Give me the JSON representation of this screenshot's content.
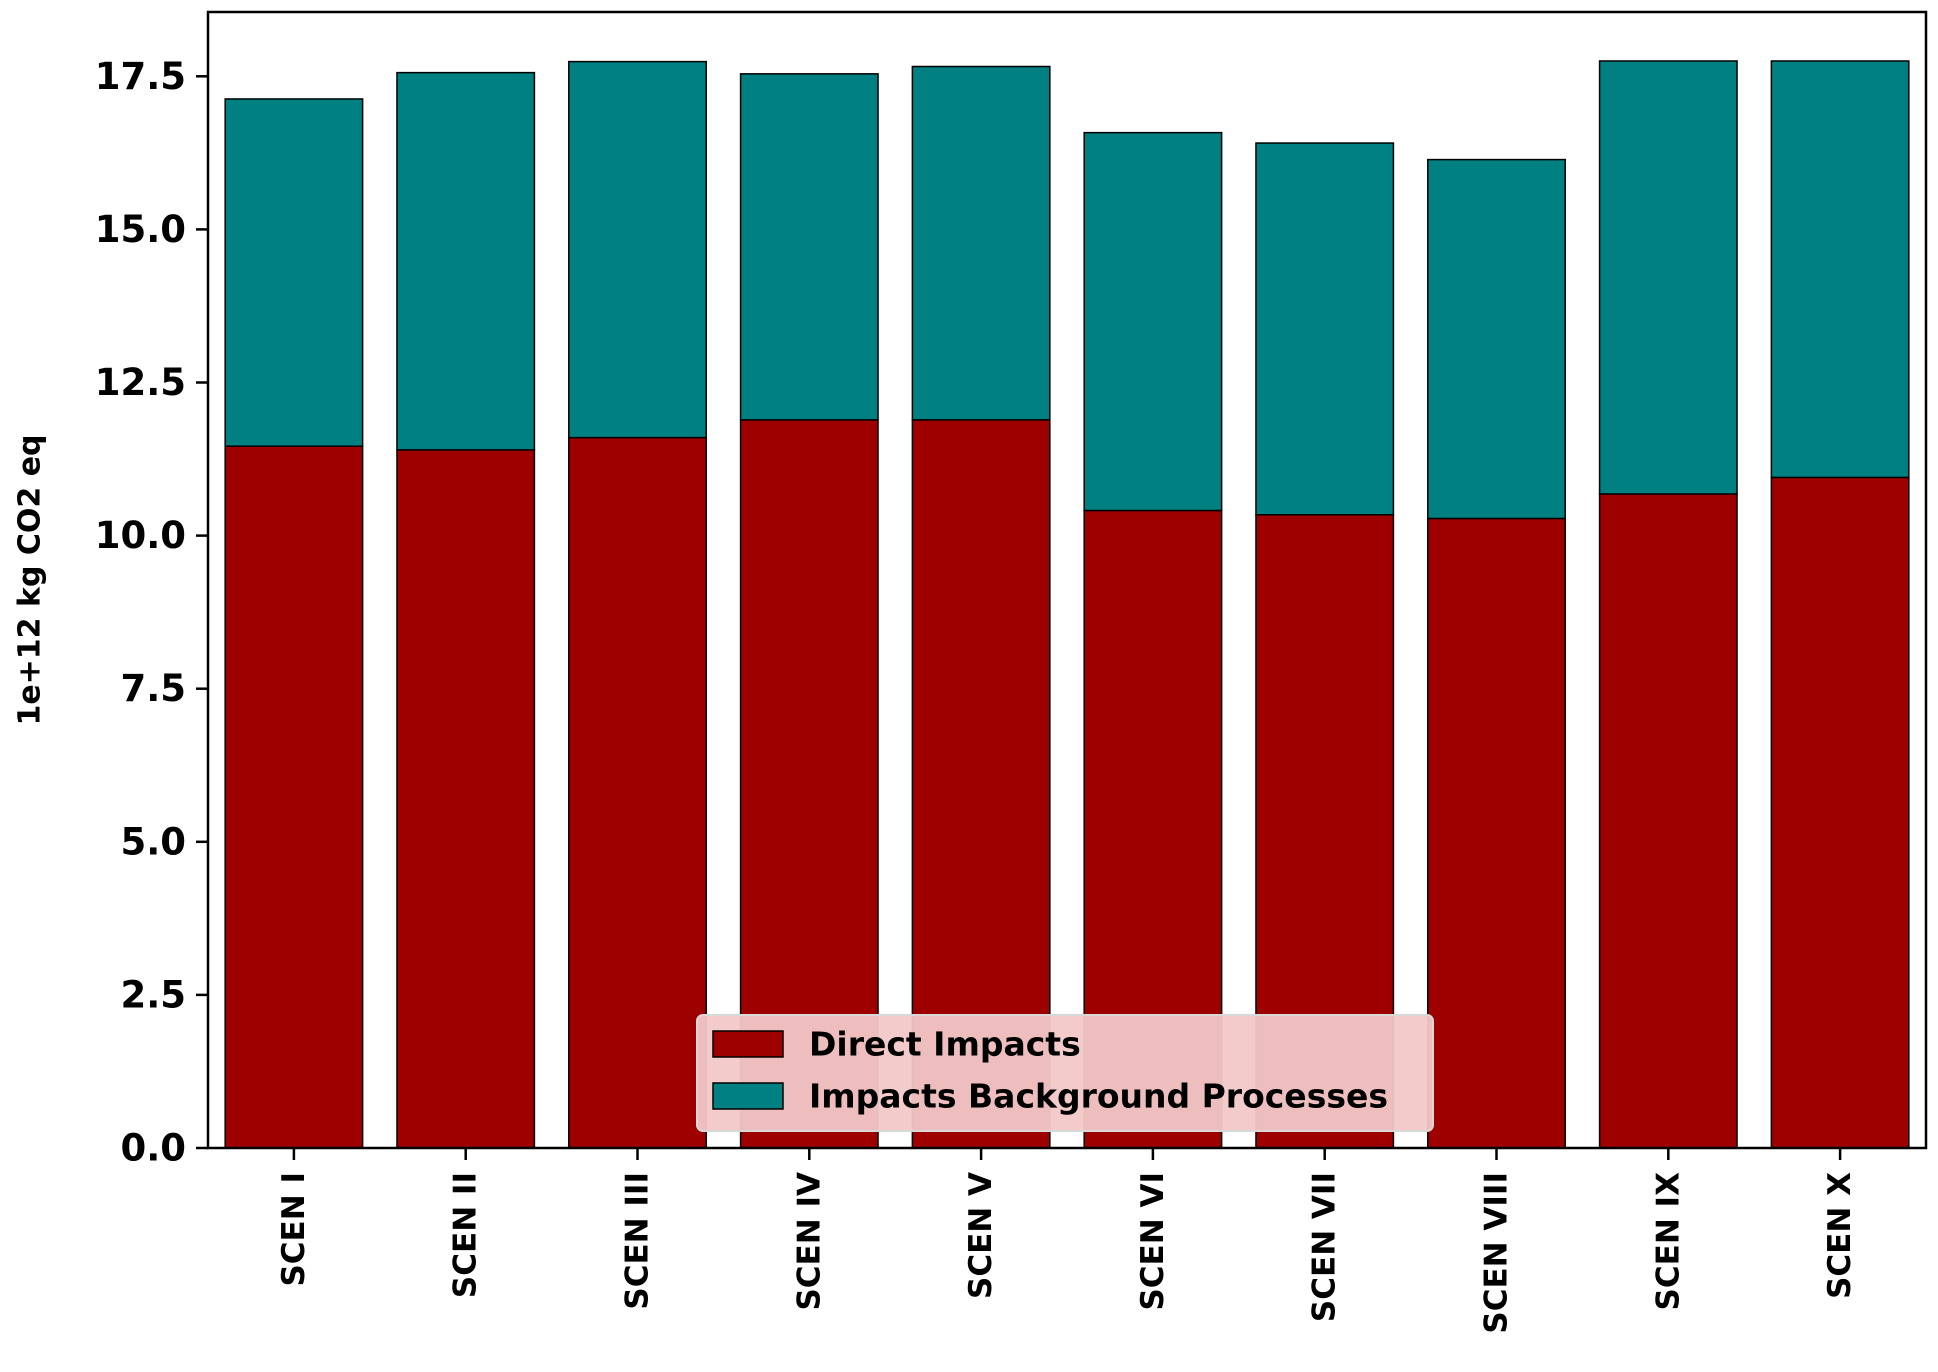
{
  "chart_data": {
    "type": "bar",
    "stacked": true,
    "title": "",
    "xlabel": "",
    "ylabel": "1e+12 kg CO2 eq",
    "ylim": [
      0,
      18.55
    ],
    "yticks": [
      "0.0",
      "2.5",
      "5.0",
      "7.5",
      "10.0",
      "12.5",
      "15.0",
      "17.5"
    ],
    "ytick_values": [
      0,
      2.5,
      5,
      7.5,
      10,
      12.5,
      15,
      17.5
    ],
    "categories": [
      "SCEN I",
      "SCEN II",
      "SCEN III",
      "SCEN IV",
      "SCEN V",
      "SCEN VI",
      "SCEN VII",
      "SCEN VIII",
      "SCEN IX",
      "SCEN X"
    ],
    "series": [
      {
        "name": "Direct Impacts",
        "color": "#9e0000",
        "values": [
          11.46,
          11.4,
          11.6,
          11.89,
          11.89,
          10.41,
          10.34,
          10.28,
          10.68,
          10.95
        ]
      },
      {
        "name": "Impacts Background Processes",
        "color": "#008080",
        "values": [
          5.67,
          6.16,
          6.14,
          5.65,
          5.77,
          6.17,
          6.07,
          5.86,
          7.07,
          6.8
        ]
      }
    ],
    "legend": {
      "position": "lower-center",
      "entries": [
        "Direct Impacts",
        "Impacts Background Processes"
      ],
      "background": "#f2c8c8"
    }
  }
}
